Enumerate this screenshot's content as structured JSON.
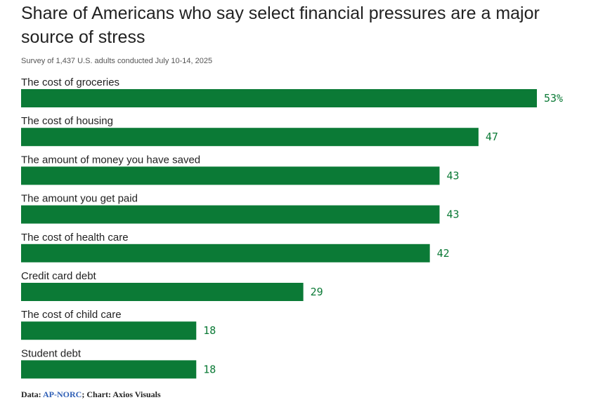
{
  "chart_data": {
    "type": "bar",
    "orientation": "horizontal",
    "title": "Share of Americans who say select financial pressures are a major source of stress",
    "subtitle": "Survey of 1,437 U.S. adults conducted July 10-14, 2025",
    "categories": [
      "The cost of groceries",
      "The cost of housing",
      "The amount of money you have saved",
      "The amount you get paid",
      "The cost of health care",
      "Credit card debt",
      "The cost of child care",
      "Student debt"
    ],
    "values": [
      53,
      47,
      43,
      43,
      42,
      29,
      18,
      18
    ],
    "value_labels": [
      "53%",
      "47",
      "43",
      "43",
      "42",
      "29",
      "18",
      "18"
    ],
    "unit": "%",
    "xlim": [
      0,
      53
    ],
    "grid": false,
    "legend": "none",
    "bar_color": "#0b7a36",
    "label_color": "#0b7a36"
  },
  "footer": {
    "data_prefix": "Data: ",
    "source": "AP-NORC",
    "chart_credit": "; Chart: Axios Visuals"
  }
}
